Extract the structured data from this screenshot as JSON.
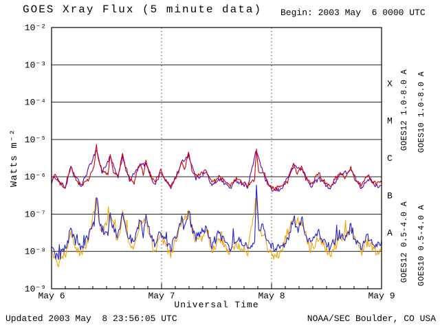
{
  "page": {
    "title": "GOES Xray Flux (5 minute data)",
    "begin_label": "Begin: 2003 May  6 0000 UTC",
    "updated_label": "Updated 2003 May  8 23:56:05 UTC",
    "credit_label": "NOAA/SEC Boulder, CO USA"
  },
  "chart_data": {
    "type": "line",
    "title": "GOES Xray Flux (5 minute data)",
    "xlabel": "Universal Time",
    "ylabel": "Watts m⁻²",
    "x_range_hours": [
      0,
      72
    ],
    "x_tick_hours": [
      0,
      24,
      48,
      72
    ],
    "x_tick_labels": [
      "May 6",
      "May 7",
      "May 8",
      "May 9"
    ],
    "y_log_range_exponents": [
      -9,
      -2
    ],
    "y_tick_exponents": [
      -2,
      -3,
      -4,
      -5,
      -6,
      -7,
      -8,
      -9
    ],
    "y_tick_labels": [
      "10⁻²",
      "10⁻³",
      "10⁻⁴",
      "10⁻⁵",
      "10⁻⁶",
      "10⁻⁷",
      "10⁻⁸",
      "10⁻⁹"
    ],
    "gridline_exponents": [
      -3,
      -4,
      -5,
      -6,
      -7,
      -8
    ],
    "vertical_gridline_hours": [
      24,
      48
    ],
    "grid": true,
    "legend_position": "right-rotated",
    "flare_classes": [
      {
        "label": "X",
        "log_center": -3.5
      },
      {
        "label": "M",
        "log_center": -4.5
      },
      {
        "label": "C",
        "log_center": -5.5
      },
      {
        "label": "B",
        "log_center": -6.5
      },
      {
        "label": "A",
        "log_center": -7.5
      }
    ],
    "series": [
      {
        "name": "GOES12 1.0-8.0 A",
        "color": "#6600aa",
        "points": [
          [
            0,
            7e-07
          ],
          [
            0.8,
            1e-06
          ],
          [
            3,
            5e-07
          ],
          [
            4.2,
            1.7e-06
          ],
          [
            6.5,
            5.5e-07
          ],
          [
            9.8,
            5.5e-06
          ],
          [
            11,
            1.3e-06
          ],
          [
            12.8,
            3.4e-06
          ],
          [
            14.5,
            9e-07
          ],
          [
            15.5,
            3.6e-06
          ],
          [
            17,
            8e-07
          ],
          [
            19.3,
            2e-06
          ],
          [
            20.6,
            2.2e-06
          ],
          [
            22.5,
            6e-07
          ],
          [
            23.8,
            1.3e-06
          ],
          [
            26,
            5e-07
          ],
          [
            28.4,
            2.4e-06
          ],
          [
            29.9,
            3.8e-06
          ],
          [
            31.5,
            9e-07
          ],
          [
            33.8,
            1.3e-06
          ],
          [
            35,
            5.5e-07
          ],
          [
            36.5,
            9e-07
          ],
          [
            39,
            5e-07
          ],
          [
            40.3,
            8e-07
          ],
          [
            42.8,
            5.5e-07
          ],
          [
            44.7,
            5.2e-06
          ],
          [
            46.3,
            1.1e-06
          ],
          [
            47.5,
            5e-07
          ],
          [
            48.5,
            4.2e-07
          ],
          [
            50,
            4.5e-07
          ],
          [
            52.8,
            1.9e-06
          ],
          [
            54.7,
            1.6e-06
          ],
          [
            56.5,
            5.5e-07
          ],
          [
            58.3,
            9e-07
          ],
          [
            60.8,
            4.8e-07
          ],
          [
            62.8,
            1.1e-06
          ],
          [
            65.3,
            1.5e-06
          ],
          [
            67.5,
            5e-07
          ],
          [
            69,
            9e-07
          ],
          [
            71,
            5.5e-07
          ],
          [
            72,
            6e-07
          ]
        ]
      },
      {
        "name": "GOES10 1.0-8.0 A",
        "color": "#cc0000",
        "points": [
          [
            0,
            8e-07
          ],
          [
            0.8,
            1.2e-06
          ],
          [
            1.5,
            7e-07
          ],
          [
            3,
            5.5e-07
          ],
          [
            4.2,
            2e-06
          ],
          [
            5,
            9e-07
          ],
          [
            6.5,
            6e-07
          ],
          [
            8,
            8e-07
          ],
          [
            9.3,
            2e-06
          ],
          [
            9.8,
            6.5e-06
          ],
          [
            10.3,
            2.5e-06
          ],
          [
            11,
            1.5e-06
          ],
          [
            12.3,
            1.1e-06
          ],
          [
            12.8,
            4e-06
          ],
          [
            13.5,
            1.4e-06
          ],
          [
            14.5,
            1e-06
          ],
          [
            15.5,
            4.2e-06
          ],
          [
            16.2,
            1.5e-06
          ],
          [
            17,
            9e-07
          ],
          [
            18,
            7e-07
          ],
          [
            19.3,
            2.4e-06
          ],
          [
            20,
            1.2e-06
          ],
          [
            20.6,
            2.6e-06
          ],
          [
            21.5,
            1.1e-06
          ],
          [
            22.5,
            7e-07
          ],
          [
            23.8,
            1.5e-06
          ],
          [
            24.5,
            9e-07
          ],
          [
            26,
            5.5e-07
          ],
          [
            27.5,
            1.1e-06
          ],
          [
            28.4,
            2.8e-06
          ],
          [
            29,
            1.4e-06
          ],
          [
            29.9,
            4.4e-06
          ],
          [
            30.6,
            1.6e-06
          ],
          [
            31.5,
            1e-06
          ],
          [
            33,
            1.3e-06
          ],
          [
            33.8,
            1.5e-06
          ],
          [
            35,
            6.5e-07
          ],
          [
            36.5,
            1e-06
          ],
          [
            37.5,
            8e-07
          ],
          [
            39,
            5.5e-07
          ],
          [
            40.3,
            9e-07
          ],
          [
            41.5,
            7e-07
          ],
          [
            42.8,
            6e-07
          ],
          [
            44.3,
            8e-07
          ],
          [
            44.7,
            6.2e-06
          ],
          [
            45.2,
            1.2e-06
          ],
          [
            46.3,
            1.3e-06
          ],
          [
            47.5,
            6e-07
          ],
          [
            48.5,
            5e-07
          ],
          [
            50,
            5.5e-07
          ],
          [
            51.5,
            7e-07
          ],
          [
            52.8,
            2.2e-06
          ],
          [
            53.6,
            1.2e-06
          ],
          [
            54.7,
            1.9e-06
          ],
          [
            55.5,
            9e-07
          ],
          [
            56.5,
            6.5e-07
          ],
          [
            58.3,
            1.2e-06
          ],
          [
            59.3,
            8e-07
          ],
          [
            60.8,
            5.5e-07
          ],
          [
            62.8,
            1.3e-06
          ],
          [
            63.8,
            9e-07
          ],
          [
            65.3,
            1.8e-06
          ],
          [
            66.3,
            8e-07
          ],
          [
            67.5,
            6e-07
          ],
          [
            69,
            1.1e-06
          ],
          [
            70,
            7e-07
          ],
          [
            71,
            6.5e-07
          ],
          [
            72,
            7e-07
          ]
        ]
      },
      {
        "name": "GOES12 0.5-4.0 A",
        "color": "#f0a202",
        "points": [
          [
            0,
            9e-09
          ],
          [
            0.7,
            6e-09
          ],
          [
            1.5,
            4e-09
          ],
          [
            2.5,
            8e-09
          ],
          [
            3.5,
            1e-08
          ],
          [
            4.2,
            4e-08
          ],
          [
            5,
            1.4e-08
          ],
          [
            6.5,
            8e-09
          ],
          [
            8,
            1.8e-08
          ],
          [
            9.8,
            2.4e-07
          ],
          [
            10.4,
            6e-08
          ],
          [
            11,
            3e-08
          ],
          [
            12.8,
            9e-08
          ],
          [
            14.5,
            1.8e-08
          ],
          [
            15.5,
            1e-07
          ],
          [
            17,
            1.8e-08
          ],
          [
            18,
            1.1e-08
          ],
          [
            19.3,
            5.5e-08
          ],
          [
            20.6,
            6e-08
          ],
          [
            22.5,
            1e-08
          ],
          [
            23.8,
            2.6e-08
          ],
          [
            26,
            8e-09
          ],
          [
            28.4,
            6e-08
          ],
          [
            29.9,
            1e-07
          ],
          [
            31.5,
            1.8e-08
          ],
          [
            33.8,
            3e-08
          ],
          [
            35,
            1e-08
          ],
          [
            36.5,
            2.2e-08
          ],
          [
            39,
            9e-09
          ],
          [
            40.3,
            1.6e-08
          ],
          [
            42.8,
            9e-09
          ],
          [
            44.7,
            3.5e-07
          ],
          [
            45.2,
            4e-08
          ],
          [
            46.3,
            3e-08
          ],
          [
            47.5,
            1e-08
          ],
          [
            48.5,
            8e-09
          ],
          [
            50,
            9e-09
          ],
          [
            52.8,
            7e-08
          ],
          [
            54.7,
            5.5e-08
          ],
          [
            56.5,
            1.1e-08
          ],
          [
            58.3,
            2.2e-08
          ],
          [
            60.8,
            8e-09
          ],
          [
            62.8,
            2.2e-08
          ],
          [
            65.3,
            3.5e-08
          ],
          [
            67.5,
            9e-09
          ],
          [
            69,
            1.8e-08
          ],
          [
            71,
            9e-09
          ],
          [
            72,
            1.4e-08
          ]
        ]
      },
      {
        "name": "GOES10 0.5-4.0 A",
        "color": "#2020d0",
        "points": [
          [
            0,
            1.4e-08
          ],
          [
            0.7,
            9e-09
          ],
          [
            1.5,
            6e-09
          ],
          [
            2.5,
            1.2e-08
          ],
          [
            3.5,
            1.5e-08
          ],
          [
            4.2,
            5e-08
          ],
          [
            5,
            2e-08
          ],
          [
            6.5,
            1.2e-08
          ],
          [
            8,
            2.5e-08
          ],
          [
            9.3,
            6e-08
          ],
          [
            9.8,
            3e-07
          ],
          [
            10.4,
            8e-08
          ],
          [
            11,
            4e-08
          ],
          [
            12.3,
            3e-08
          ],
          [
            12.8,
            1.1e-07
          ],
          [
            13.5,
            4e-08
          ],
          [
            14.5,
            2.5e-08
          ],
          [
            15.5,
            1.3e-07
          ],
          [
            16.2,
            4e-08
          ],
          [
            17,
            2.5e-08
          ],
          [
            18,
            1.6e-08
          ],
          [
            19.3,
            7e-08
          ],
          [
            20,
            3e-08
          ],
          [
            20.6,
            7.5e-08
          ],
          [
            21.5,
            2.8e-08
          ],
          [
            22.5,
            1.5e-08
          ],
          [
            23.8,
            3.5e-08
          ],
          [
            24.5,
            2e-08
          ],
          [
            26,
            1.2e-08
          ],
          [
            27.5,
            3e-08
          ],
          [
            28.4,
            8e-08
          ],
          [
            29,
            4e-08
          ],
          [
            29.9,
            1.3e-07
          ],
          [
            30.6,
            4.5e-08
          ],
          [
            31.5,
            2.5e-08
          ],
          [
            33,
            3.5e-08
          ],
          [
            33.8,
            4e-08
          ],
          [
            35,
            1.5e-08
          ],
          [
            36.5,
            3e-08
          ],
          [
            37.5,
            2e-08
          ],
          [
            39,
            1.3e-08
          ],
          [
            40.3,
            2.2e-08
          ],
          [
            41.5,
            1.6e-08
          ],
          [
            42.8,
            1.3e-08
          ],
          [
            44.3,
            2e-08
          ],
          [
            44.7,
            5e-07
          ],
          [
            45.2,
            5e-08
          ],
          [
            46.3,
            4e-08
          ],
          [
            47.5,
            1.5e-08
          ],
          [
            48.5,
            1.2e-08
          ],
          [
            50,
            1.3e-08
          ],
          [
            51.5,
            1.8e-08
          ],
          [
            52.8,
            9e-08
          ],
          [
            53.6,
            3.5e-08
          ],
          [
            54.7,
            7e-08
          ],
          [
            55.5,
            2.5e-08
          ],
          [
            56.5,
            1.6e-08
          ],
          [
            58.3,
            3e-08
          ],
          [
            59.3,
            2e-08
          ],
          [
            60.8,
            1.2e-08
          ],
          [
            62.8,
            3e-08
          ],
          [
            63.8,
            2e-08
          ],
          [
            65.3,
            4.5e-08
          ],
          [
            66.3,
            2e-08
          ],
          [
            67.5,
            1.3e-08
          ],
          [
            69,
            2.5e-08
          ],
          [
            70,
            1.6e-08
          ],
          [
            71,
            1.3e-08
          ],
          [
            72,
            2e-08
          ]
        ]
      }
    ]
  }
}
